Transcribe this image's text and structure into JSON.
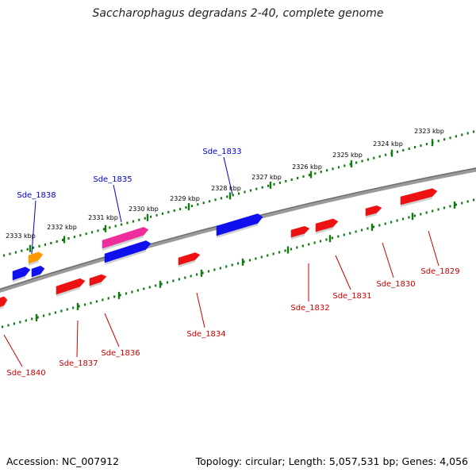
{
  "title": "Saccharophagus degradans 2-40, complete genome",
  "footer": {
    "accession": "Accession: NC_007912",
    "summary": "Topology: circular; Length: 5,057,531 bp; Genes: 4,056"
  },
  "colors": {
    "backbone": "#808080",
    "tick": "#127a12",
    "forward_label": "#0000cc",
    "reverse_label": "#cc0000",
    "blue_gene": "#1010ee",
    "red_gene": "#ee1111",
    "pink_gene": "#ee2d9a",
    "orange_gene": "#ff9900",
    "tick_label": "#000000"
  },
  "scale_labels": [
    "2323 kbp",
    "2324 kbp",
    "2325 kbp",
    "2326 kbp",
    "2327 kbp",
    "2328 kbp",
    "2329 kbp",
    "2330 kbp",
    "2331 kbp",
    "2332 kbp",
    "2333 kbp"
  ],
  "genes": [
    {
      "label": "Sde_1829",
      "strand": "reverse",
      "color": "red"
    },
    {
      "label": "Sde_1830",
      "strand": "reverse",
      "color": "red"
    },
    {
      "label": "Sde_1831",
      "strand": "reverse",
      "color": "red"
    },
    {
      "label": "Sde_1832",
      "strand": "reverse",
      "color": "red"
    },
    {
      "label": "Sde_1833",
      "strand": "forward",
      "color": "blue"
    },
    {
      "label": "Sde_1834",
      "strand": "reverse",
      "color": "red"
    },
    {
      "label": "Sde_1835",
      "strand": "forward",
      "color": "pink"
    },
    {
      "label": "Sde_1836",
      "strand": "reverse",
      "color": "red"
    },
    {
      "label": "Sde_1837",
      "strand": "reverse",
      "color": "red"
    },
    {
      "label": "Sde_1838",
      "strand": "forward",
      "color": "orange"
    },
    {
      "label": "Sde_1840",
      "strand": "reverse",
      "color": "red"
    }
  ]
}
